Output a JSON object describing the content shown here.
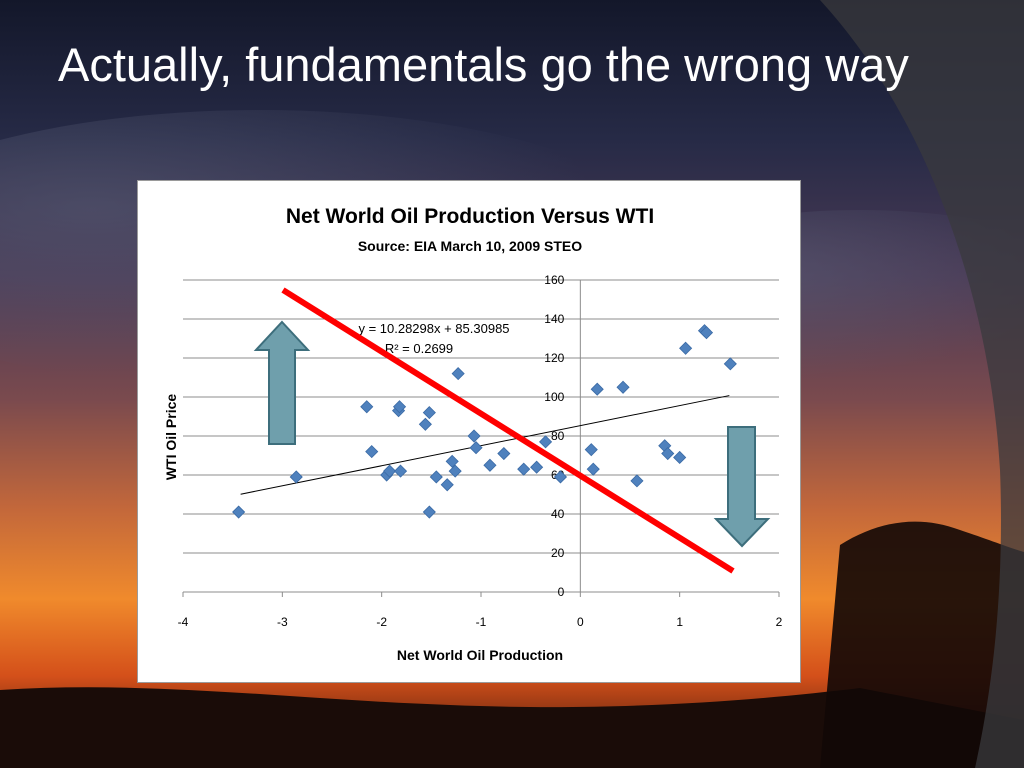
{
  "slide": {
    "title": "Actually, fundamentals go the wrong way"
  },
  "colors": {
    "accent_line": "#ff0000",
    "marker": "#4f81bd",
    "arrow_fill": "#6f9fac",
    "arrow_stroke": "#3d6e7c"
  },
  "annotations": {
    "up_arrow_icon": "arrow-up",
    "down_arrow_icon": "arrow-down"
  },
  "chart_data": {
    "type": "scatter",
    "title": "Net World Oil Production Versus WTI",
    "subtitle": "Source:  EIA March 10, 2009 STEO",
    "xlabel": "Net World Oil Production",
    "ylabel": "WTI Oil Price",
    "xlim": [
      -4,
      2
    ],
    "ylim": [
      0,
      160
    ],
    "x_ticks": [
      "-4",
      "-3",
      "-2",
      "-1",
      "0",
      "1",
      "2"
    ],
    "y_ticks": [
      "0",
      "20",
      "40",
      "60",
      "80",
      "100",
      "120",
      "140",
      "160"
    ],
    "grid": "horizontal",
    "legend": "none",
    "trendline": {
      "type": "linear",
      "equation": "y = 10.28298x + 85.30985",
      "r_squared": "R² = 0.2699",
      "x_range": [
        -3.42,
        1.5
      ]
    },
    "points": [
      {
        "x": -3.44,
        "y": 41
      },
      {
        "x": -2.86,
        "y": 59
      },
      {
        "x": -2.15,
        "y": 95
      },
      {
        "x": -2.1,
        "y": 72
      },
      {
        "x": -1.95,
        "y": 60
      },
      {
        "x": -1.92,
        "y": 62
      },
      {
        "x": -1.83,
        "y": 93
      },
      {
        "x": -1.82,
        "y": 95
      },
      {
        "x": -1.81,
        "y": 62
      },
      {
        "x": -1.56,
        "y": 86
      },
      {
        "x": -1.52,
        "y": 92
      },
      {
        "x": -1.52,
        "y": 41
      },
      {
        "x": -1.45,
        "y": 59
      },
      {
        "x": -1.34,
        "y": 55
      },
      {
        "x": -1.29,
        "y": 67
      },
      {
        "x": -1.26,
        "y": 62
      },
      {
        "x": -1.23,
        "y": 112
      },
      {
        "x": -1.07,
        "y": 80
      },
      {
        "x": -1.05,
        "y": 74
      },
      {
        "x": -0.91,
        "y": 65
      },
      {
        "x": -0.77,
        "y": 71
      },
      {
        "x": -0.57,
        "y": 63
      },
      {
        "x": -0.44,
        "y": 64
      },
      {
        "x": -0.35,
        "y": 77
      },
      {
        "x": -0.2,
        "y": 59
      },
      {
        "x": 0.11,
        "y": 73
      },
      {
        "x": 0.13,
        "y": 63
      },
      {
        "x": 0.17,
        "y": 104
      },
      {
        "x": 0.43,
        "y": 105
      },
      {
        "x": 0.57,
        "y": 57
      },
      {
        "x": 0.85,
        "y": 75
      },
      {
        "x": 0.88,
        "y": 71
      },
      {
        "x": 1.0,
        "y": 69
      },
      {
        "x": 1.06,
        "y": 125
      },
      {
        "x": 1.25,
        "y": 134
      },
      {
        "x": 1.27,
        "y": 133
      },
      {
        "x": 1.51,
        "y": 117
      }
    ]
  }
}
